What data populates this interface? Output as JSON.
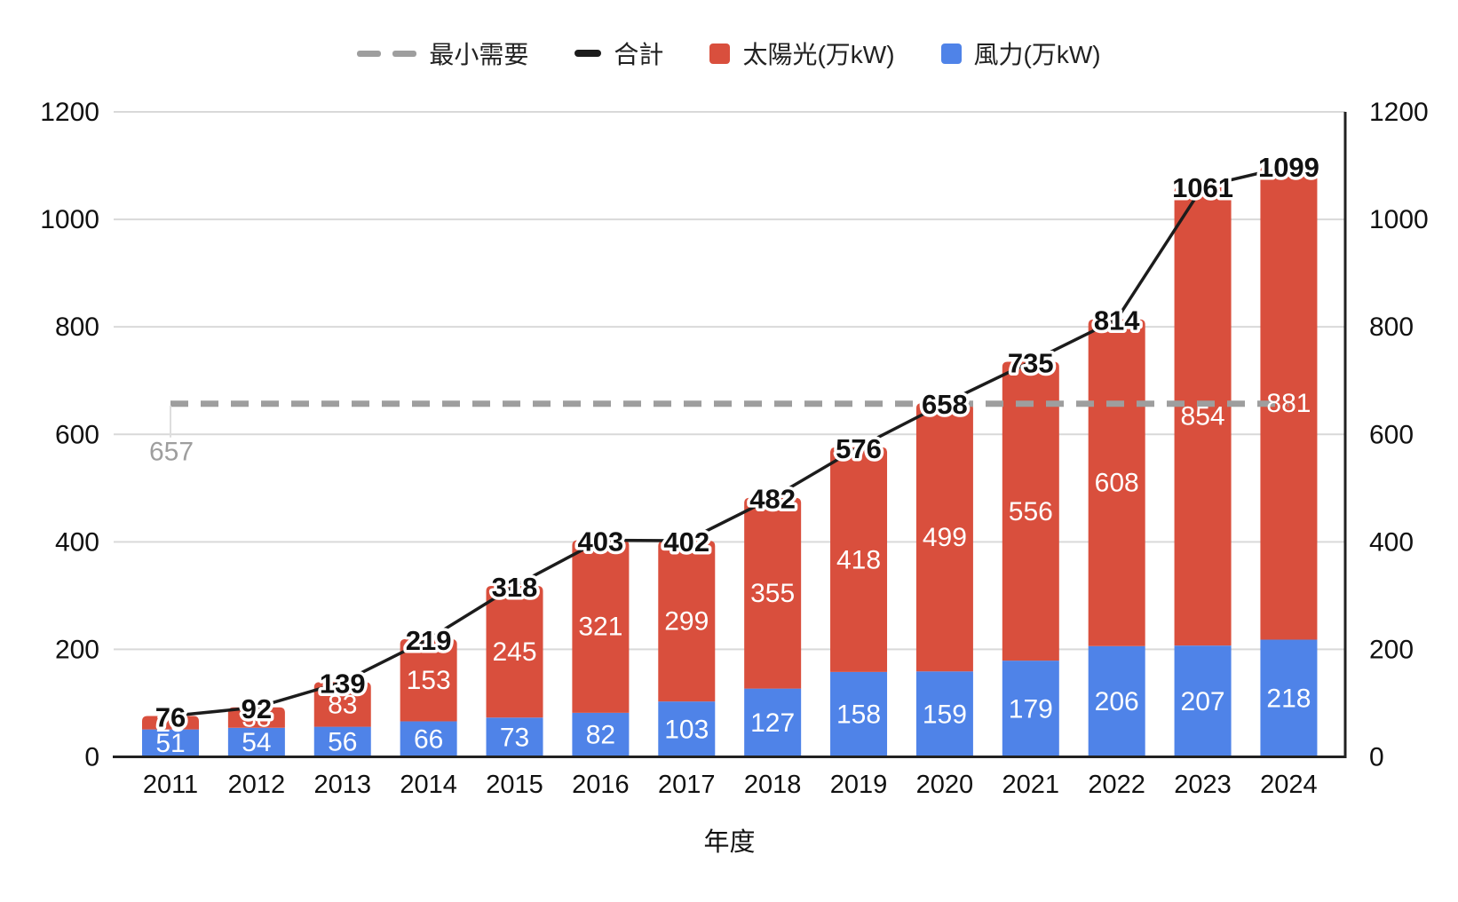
{
  "legend": {
    "items": [
      {
        "id": "min-demand",
        "label": "最小需要",
        "swatch": "dash2",
        "color": "#9e9e9e"
      },
      {
        "id": "total",
        "label": "合計",
        "swatch": "dash1",
        "color": "#1c1c1c"
      },
      {
        "id": "solar",
        "label": "太陽光(万kW)",
        "swatch": "square",
        "color": "#d94f3d"
      },
      {
        "id": "wind",
        "label": "風力(万kW)",
        "swatch": "square",
        "color": "#4f83e8"
      }
    ]
  },
  "chart_data": {
    "type": "bar",
    "stacked": true,
    "title": "",
    "xlabel": "年度",
    "ylabel": "",
    "ylim": [
      0,
      1200
    ],
    "yticks": [
      0,
      200,
      400,
      600,
      800,
      1000,
      1200
    ],
    "grid": true,
    "dual_axis": true,
    "legend_position": "top",
    "categories": [
      "2011",
      "2012",
      "2013",
      "2014",
      "2015",
      "2016",
      "2017",
      "2018",
      "2019",
      "2020",
      "2021",
      "2022",
      "2023",
      "2024"
    ],
    "series": [
      {
        "name": "風力(万kW)",
        "type": "bar",
        "color": "#4f83e8",
        "label_color": "#ffffff",
        "values": [
          51,
          54,
          56,
          66,
          73,
          82,
          103,
          127,
          158,
          159,
          179,
          206,
          207,
          218
        ]
      },
      {
        "name": "太陽光(万kW)",
        "type": "bar",
        "color": "#d94f3d",
        "label_color": "#ffffff",
        "values": [
          25,
          38,
          83,
          153,
          245,
          321,
          299,
          355,
          418,
          499,
          556,
          608,
          854,
          881
        ]
      },
      {
        "name": "合計",
        "type": "line",
        "color": "#1c1c1c",
        "label_color": "#111111",
        "values": [
          76,
          92,
          139,
          219,
          318,
          403,
          402,
          482,
          576,
          658,
          735,
          814,
          1061,
          1099
        ]
      },
      {
        "name": "最小需要",
        "type": "dashed-line",
        "color": "#9e9e9e",
        "value": 657,
        "annotation": "657",
        "annotation_color": "#9e9e9e"
      }
    ]
  }
}
